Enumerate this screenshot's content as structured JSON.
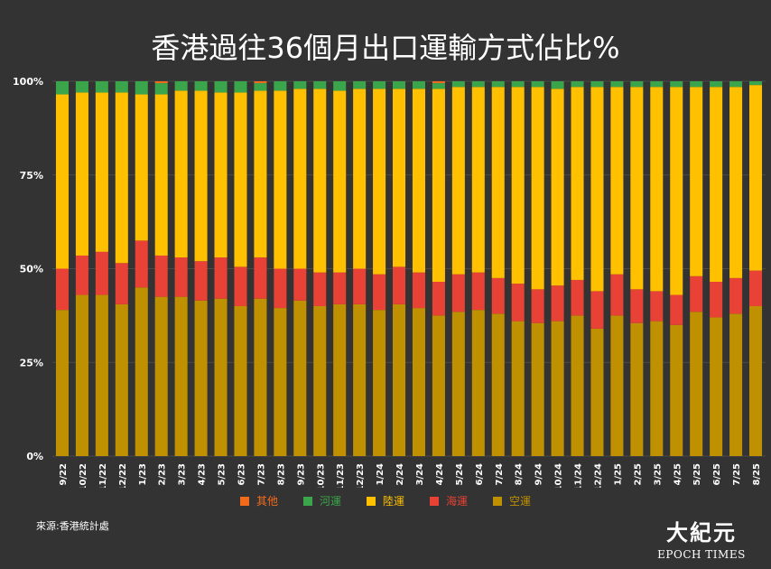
{
  "title": "香港過往36個月出口運輸方式佔比%",
  "source": "來源:香港統計處",
  "logo": {
    "cn": "大紀元",
    "en": "EPOCH TIMES"
  },
  "colors": {
    "background": "#333333",
    "grid": "#4a4a4a",
    "axis_text": "#ffffff"
  },
  "chart_data": {
    "type": "bar",
    "stacked": true,
    "ylim": [
      0,
      100
    ],
    "yticks": [
      "0%",
      "25%",
      "50%",
      "75%",
      "100%"
    ],
    "categories": [
      "9/22",
      "10/22",
      "11/22",
      "12/22",
      "1/23",
      "2/23",
      "3/23",
      "4/23",
      "5/23",
      "6/23",
      "7/23",
      "8/23",
      "9/23",
      "10/23",
      "11/23",
      "12/23",
      "1/24",
      "2/24",
      "3/24",
      "4/24",
      "5/24",
      "6/24",
      "7/24",
      "8/24",
      "9/24",
      "10/24",
      "11/24",
      "12/24",
      "1/25",
      "2/25",
      "3/25",
      "4/25",
      "5/25",
      "6/25",
      "7/25",
      "8/25"
    ],
    "series": [
      {
        "name": "空運",
        "color": "#BF9000",
        "values": [
          39,
          43,
          43,
          40.5,
          45,
          42.5,
          42.5,
          41.5,
          42,
          40,
          42,
          39.5,
          41.5,
          40,
          40.5,
          40.5,
          39,
          40.5,
          39.5,
          37.5,
          38.5,
          39,
          38,
          36,
          35.5,
          36,
          37.5,
          34,
          37.5,
          35.5,
          36,
          35,
          38.5,
          37,
          38,
          40
        ]
      },
      {
        "name": "海運",
        "color": "#E84135",
        "values": [
          11,
          10.5,
          11.5,
          11,
          12.5,
          11,
          10.5,
          10.5,
          11,
          10.5,
          11,
          10.5,
          8.5,
          9,
          8.5,
          9.5,
          9.5,
          10,
          9.5,
          9,
          10,
          10,
          9.5,
          10,
          9,
          9.5,
          9.5,
          10,
          11,
          9,
          8,
          8,
          9.5,
          9.5,
          9.5,
          9.5
        ]
      },
      {
        "name": "陸運",
        "color": "#FFC000",
        "values": [
          46.5,
          43.5,
          42.5,
          45.5,
          39,
          43,
          44.5,
          45.5,
          44,
          46.5,
          44.5,
          47.5,
          48,
          49,
          48.5,
          48,
          49.5,
          47.5,
          49,
          51.5,
          50,
          49.5,
          51,
          52.5,
          54,
          52.5,
          51.5,
          54.5,
          50,
          54,
          54.5,
          55.5,
          50.5,
          52,
          51,
          49.5
        ]
      },
      {
        "name": "河運",
        "color": "#3AA54A",
        "values": [
          3.5,
          3,
          3,
          3,
          3.5,
          3,
          2.5,
          2.5,
          3,
          3,
          2,
          2.5,
          2,
          2,
          2.5,
          2,
          2,
          2,
          2,
          1.5,
          1.5,
          1.5,
          1.5,
          1.5,
          1.5,
          2,
          1.5,
          1.5,
          1.5,
          1.5,
          1.5,
          1.5,
          1.5,
          1.5,
          1.5,
          1
        ]
      },
      {
        "name": "其他",
        "color": "#F26B1D",
        "values": [
          0,
          0,
          0,
          0,
          0,
          0.5,
          0,
          0,
          0,
          0,
          0.5,
          0,
          0,
          0,
          0,
          0,
          0,
          0,
          0,
          0.5,
          0,
          0,
          0,
          0,
          0,
          0,
          0,
          0,
          0,
          0,
          0,
          0,
          0,
          0,
          0,
          0
        ]
      }
    ],
    "legend_order": [
      "其他",
      "河運",
      "陸運",
      "海運",
      "空運"
    ],
    "legend_position": "bottom",
    "grid": true
  }
}
